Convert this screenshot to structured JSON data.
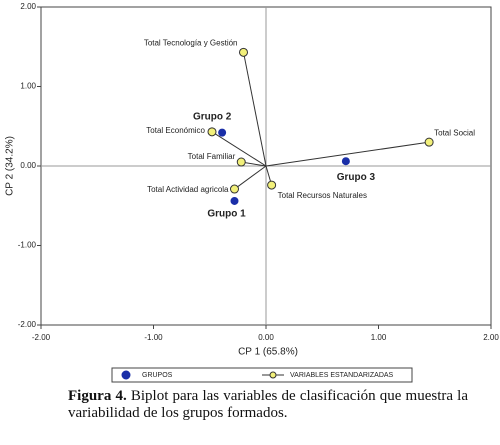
{
  "chart_data": {
    "type": "scatter",
    "x_label": "CP 1 (65.8%)",
    "y_label": "CP 2 (34.2%)",
    "xlim": [
      -2,
      2
    ],
    "ylim": [
      -2,
      2
    ],
    "xticks": [
      {
        "value": -2,
        "label": "-2.00"
      },
      {
        "value": -1,
        "label": "-1.00"
      },
      {
        "value": 0,
        "label": "0.00"
      },
      {
        "value": 1,
        "label": "1.00"
      },
      {
        "value": 2,
        "label": "2.00"
      }
    ],
    "yticks": [
      {
        "value": -2,
        "label": "-2.00"
      },
      {
        "value": -1,
        "label": "-1.00"
      },
      {
        "value": 0,
        "label": "0.00"
      },
      {
        "value": 1,
        "label": "1.00"
      },
      {
        "value": 2,
        "label": "2.00"
      }
    ],
    "series": [
      {
        "name": "GRUPOS",
        "color": "#1a2fa8",
        "x": [
          -0.28,
          -0.39,
          0.71
        ],
        "values": [
          -0.44,
          0.42,
          0.06
        ],
        "point_labels": [
          "Grupo 1",
          "Grupo 2",
          "Grupo 3"
        ]
      },
      {
        "name": "VARIABLES ESTANDARIZADAS",
        "color": "#f2f07a",
        "x": [
          -0.2,
          -0.48,
          -0.22,
          -0.28,
          0.05,
          1.45
        ],
        "values": [
          1.43,
          0.43,
          0.05,
          -0.29,
          -0.24,
          0.3
        ],
        "point_labels": [
          "Total Tecnología y Gestión",
          "Total Económico",
          "Total Familiar",
          "Total Actividad agricola",
          "Total Recursos Naturales",
          "Total Social"
        ]
      }
    ]
  },
  "caption": {
    "label": "Figura 4.",
    "text": "Biplot para las variables de clasificación que muestra la variabilidad de los grupos formados."
  }
}
